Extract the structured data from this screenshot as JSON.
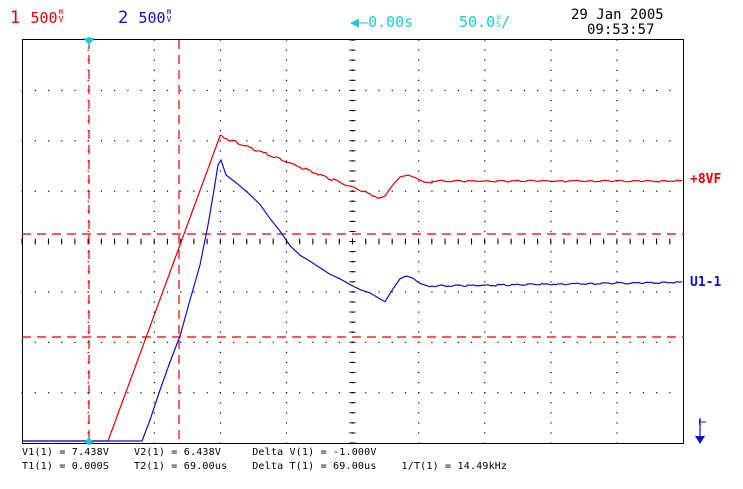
{
  "header": {
    "ch1_num": "1",
    "ch1_scale": "500",
    "ch1_unit_top": "m",
    "ch1_unit_bot": "V",
    "ch2_num": "2",
    "ch2_scale": "500",
    "ch2_unit_top": "m",
    "ch2_unit_bot": "V",
    "trigger_pos": "0.00s",
    "timebase": "50.0",
    "timebase_unit_top": "u",
    "timebase_unit_bot": "S",
    "timebase_slash": "/",
    "date": "29 Jan 2005",
    "time": "09:53:57"
  },
  "traces": {
    "ch1_label": "+8VF",
    "ch2_label": "U1-1"
  },
  "markers": {
    "trigger_marker": "T"
  },
  "status": {
    "line1_v1": "V1(1) = 7.438V",
    "line1_v2": "V2(1) = 6.438V",
    "line1_dv": "Delta V(1) = -1.000V",
    "line2_t1": "T1(1) = 0.000S",
    "line2_t2": "T2(1) = 69.00us",
    "line2_dt": "Delta T(1) = 69.00us",
    "line2_f": "1/T(1) = 14.49kHz"
  },
  "colors": {
    "ch1": "#e00000",
    "ch2": "#1010c0",
    "cursor": "#20c8d8",
    "grid": "#000000"
  },
  "icons": {
    "left_arrow": "left-arrow-icon",
    "trigger": "trigger-arrow-icon"
  }
}
